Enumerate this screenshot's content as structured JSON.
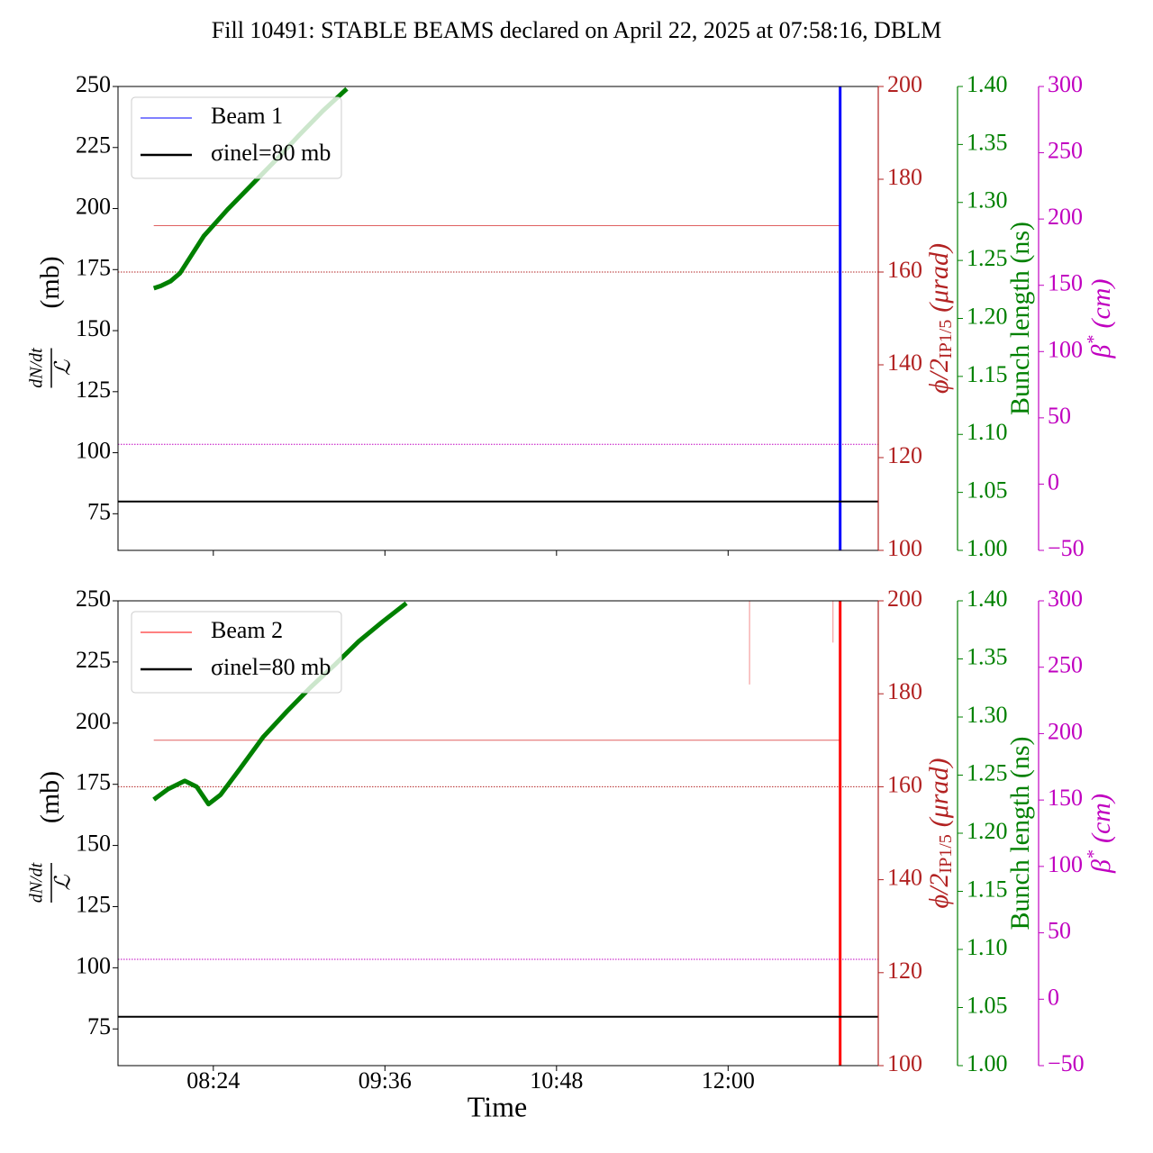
{
  "title": "Fill 10491: STABLE BEAMS declared on April 22, 2025 at 07:58:16, DBLM",
  "xlabel": "Time",
  "chart_data": [
    {
      "type": "line",
      "legend": "upper left",
      "xlim": [
        "07:44",
        "13:03"
      ],
      "xticks": [
        "08:24",
        "09:36",
        "10:48",
        "12:00"
      ],
      "ylim": [
        60,
        250
      ],
      "yticks": [
        75,
        100,
        125,
        150,
        175,
        200,
        225,
        250
      ],
      "ylabel": {
        "numerator": "dN/dt",
        "denominator": "ℒ",
        "unit": "(mb)"
      },
      "y2lim": [
        100,
        200
      ],
      "y2ticks": [
        100,
        120,
        140,
        160,
        180,
        200
      ],
      "y2label": {
        "symbol": "ϕ/2",
        "sub": "IP1/5",
        "unit": "(μrad)"
      },
      "y3lim": [
        1.0,
        1.4
      ],
      "y3ticks": [
        {
          "value": 1.0,
          "label": "1.00"
        },
        {
          "value": 1.05,
          "label": "1.05"
        },
        {
          "value": 1.1,
          "label": "1.10"
        },
        {
          "value": 1.15,
          "label": "1.15"
        },
        {
          "value": 1.2,
          "label": "1.20"
        },
        {
          "value": 1.25,
          "label": "1.25"
        },
        {
          "value": 1.3,
          "label": "1.30"
        },
        {
          "value": 1.35,
          "label": "1.35"
        },
        {
          "value": 1.4,
          "label": "1.40"
        }
      ],
      "y3label": "Bunch length (ns)",
      "y4lim": [
        -50,
        300
      ],
      "y4ticks": [
        {
          "value": -50,
          "label": "−50"
        },
        0,
        50,
        100,
        150,
        200,
        250,
        300
      ],
      "y4label": {
        "symbol": "β",
        "sup": "*",
        "unit": "(cm)"
      },
      "axis_colors": {
        "y": "#000000",
        "y2": "#b22222",
        "y3": "#008000",
        "y4": "#c000c0"
      },
      "series": [
        {
          "name": "Beam 1",
          "color": "#0000ff",
          "x": [
            "12:47",
            "12:47"
          ],
          "values": [
            60,
            250
          ]
        },
        {
          "name": "σinel=80 mb",
          "color": "#000000",
          "x": [
            "07:44",
            "13:03"
          ],
          "values": [
            80,
            80
          ]
        }
      ],
      "bunch_length": {
        "axis": "y3",
        "color": "#008000",
        "x": [
          "07:59",
          "08:02",
          "08:06",
          "08:10",
          "08:15",
          "08:20",
          "08:30",
          "08:40",
          "08:50",
          "09:00",
          "09:10",
          "09:20"
        ],
        "values": [
          1.226,
          1.228,
          1.232,
          1.239,
          1.255,
          1.271,
          1.294,
          1.315,
          1.336,
          1.358,
          1.379,
          1.398
        ]
      },
      "reference_lines": [
        {
          "axis": "y2",
          "value": 170,
          "x": [
            "07:59",
            "12:47"
          ],
          "color": "#e06060",
          "style": "solid"
        },
        {
          "axis": "y2",
          "value": 160,
          "x": [
            "07:44",
            "13:03"
          ],
          "color": "#b22222",
          "style": "dotted"
        },
        {
          "axis": "y4",
          "value": 30,
          "x": [
            "07:44",
            "13:03"
          ],
          "color": "#c000c0",
          "style": "dotted"
        }
      ]
    },
    {
      "type": "line",
      "legend": "upper left",
      "xlim": [
        "07:44",
        "13:03"
      ],
      "xticks": [
        "08:24",
        "09:36",
        "10:48",
        "12:00"
      ],
      "ylim": [
        60,
        250
      ],
      "yticks": [
        75,
        100,
        125,
        150,
        175,
        200,
        225,
        250
      ],
      "ylabel": {
        "numerator": "dN/dt",
        "denominator": "ℒ",
        "unit": "(mb)"
      },
      "y2lim": [
        100,
        200
      ],
      "y2ticks": [
        100,
        120,
        140,
        160,
        180,
        200
      ],
      "y2label": {
        "symbol": "ϕ/2",
        "sub": "IP1/5",
        "unit": "(μrad)"
      },
      "y3lim": [
        1.0,
        1.4
      ],
      "y3ticks": [
        {
          "value": 1.0,
          "label": "1.00"
        },
        {
          "value": 1.05,
          "label": "1.05"
        },
        {
          "value": 1.1,
          "label": "1.10"
        },
        {
          "value": 1.15,
          "label": "1.15"
        },
        {
          "value": 1.2,
          "label": "1.20"
        },
        {
          "value": 1.25,
          "label": "1.25"
        },
        {
          "value": 1.3,
          "label": "1.30"
        },
        {
          "value": 1.35,
          "label": "1.35"
        },
        {
          "value": 1.4,
          "label": "1.40"
        }
      ],
      "y3label": "Bunch length (ns)",
      "y4lim": [
        -50,
        300
      ],
      "y4ticks": [
        {
          "value": -50,
          "label": "−50"
        },
        0,
        50,
        100,
        150,
        200,
        250,
        300
      ],
      "y4label": {
        "symbol": "β",
        "sup": "*",
        "unit": "(cm)"
      },
      "axis_colors": {
        "y": "#000000",
        "y2": "#b22222",
        "y3": "#008000",
        "y4": "#c000c0"
      },
      "series": [
        {
          "name": "Beam 2",
          "color": "#ff0000",
          "x": [
            "12:47",
            "12:47"
          ],
          "values": [
            60,
            250
          ]
        },
        {
          "name": "σinel=80 mb",
          "color": "#000000",
          "x": [
            "07:44",
            "13:03"
          ],
          "values": [
            80,
            80
          ]
        }
      ],
      "bunch_length": {
        "axis": "y3",
        "color": "#008000",
        "x": [
          "07:59",
          "08:05",
          "08:12",
          "08:17",
          "08:22",
          "08:27",
          "08:35",
          "08:45",
          "08:55",
          "09:05",
          "09:15",
          "09:25",
          "09:35",
          "09:45"
        ],
        "values": [
          1.229,
          1.238,
          1.245,
          1.24,
          1.225,
          1.233,
          1.255,
          1.283,
          1.305,
          1.326,
          1.345,
          1.365,
          1.382,
          1.398
        ]
      },
      "crossing_angle": {
        "axis": "y2",
        "color": "#f4a0a0",
        "x": [
          "12:09",
          "12:09",
          "12:09",
          "12:44",
          "12:44"
        ],
        "values": [
          200,
          182,
          null,
          200,
          191
        ]
      },
      "reference_lines": [
        {
          "axis": "y2",
          "value": 170,
          "x": [
            "07:59",
            "12:47"
          ],
          "color": "#e06060",
          "style": "solid"
        },
        {
          "axis": "y2",
          "value": 160,
          "x": [
            "07:44",
            "13:03"
          ],
          "color": "#b22222",
          "style": "dotted"
        },
        {
          "axis": "y4",
          "value": 30,
          "x": [
            "07:44",
            "13:03"
          ],
          "color": "#c000c0",
          "style": "dotted"
        }
      ]
    }
  ]
}
